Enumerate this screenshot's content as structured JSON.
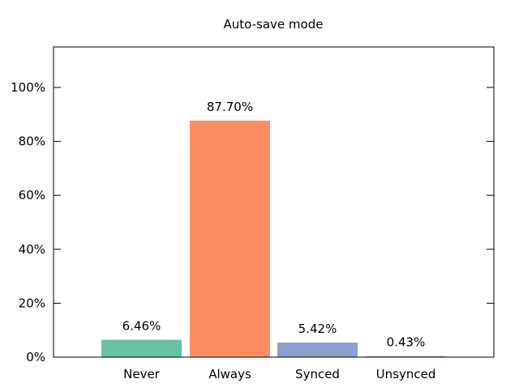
{
  "chart_data": {
    "type": "bar",
    "title": "Auto-save mode",
    "xlabel": "",
    "ylabel": "",
    "categories": [
      "Never",
      "Always",
      "Synced",
      "Unsynced"
    ],
    "values": [
      6.46,
      87.7,
      5.42,
      0.43
    ],
    "value_labels": [
      "6.46%",
      "87.70%",
      "5.42%",
      "0.43%"
    ],
    "colors": [
      "#66c2a5",
      "#fc8d62",
      "#8da0cb",
      "#e78ac3"
    ],
    "ylim": [
      0,
      115
    ],
    "yticks": [
      0,
      20,
      40,
      60,
      80,
      100
    ],
    "ytick_labels": [
      "0%",
      "20%",
      "40%",
      "60%",
      "80%",
      "100%"
    ],
    "grid": false,
    "legend": "none"
  }
}
